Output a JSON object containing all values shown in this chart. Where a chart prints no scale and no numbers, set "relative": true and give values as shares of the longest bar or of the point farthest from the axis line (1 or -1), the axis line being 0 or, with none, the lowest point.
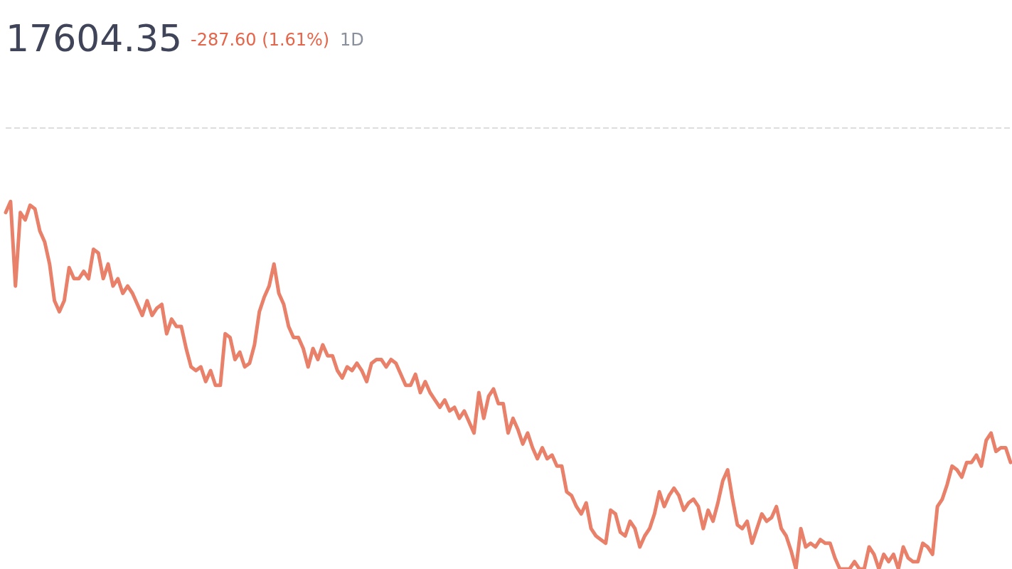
{
  "chart_data": {
    "type": "line",
    "title": "17604.35",
    "subtitle": "-287.60 (1.61%)",
    "annotations": [
      "1D"
    ],
    "relative": true,
    "marker": "none",
    "line_style": "solid",
    "ref_lines": [
      {
        "axis": "y",
        "value": 1.2,
        "color": "#dddddd",
        "line_style": "dashed"
      }
    ],
    "categories": [
      null,
      null,
      null,
      null,
      null,
      null,
      null,
      null,
      null,
      null,
      null,
      null,
      null,
      null,
      null,
      null,
      null,
      null,
      null,
      null,
      null,
      null,
      null,
      null,
      null,
      null,
      null,
      null,
      null,
      null,
      null,
      null,
      null,
      null,
      null,
      null,
      null,
      null,
      null,
      null,
      null,
      null,
      null,
      null,
      null,
      null,
      null,
      null,
      null,
      null,
      null,
      null,
      null,
      null,
      null,
      null,
      null,
      null,
      null,
      null,
      null,
      null,
      null,
      null,
      null,
      null,
      null,
      null,
      null,
      null,
      null,
      null,
      null,
      null,
      null,
      null,
      null,
      null,
      null,
      null,
      null,
      null,
      null,
      null,
      null,
      null,
      null,
      null,
      null,
      null,
      null,
      null,
      null,
      null,
      null,
      null,
      null,
      null,
      null,
      null,
      null,
      null,
      null,
      null,
      null,
      null,
      null,
      null,
      null,
      null,
      null,
      null,
      null,
      null,
      null,
      null,
      null,
      null,
      null,
      null,
      null,
      null,
      null,
      null,
      null,
      null,
      null,
      null,
      null,
      null,
      null,
      null,
      null,
      null,
      null,
      null,
      null,
      null,
      null,
      null,
      null,
      null,
      null,
      null,
      null,
      null,
      null,
      null,
      null,
      null,
      null,
      null,
      null,
      null,
      null,
      null,
      null,
      null,
      null,
      null,
      null,
      null,
      null,
      null,
      null,
      null,
      null,
      null,
      null,
      null,
      null,
      null,
      null,
      null,
      null,
      null,
      null,
      null,
      null,
      null,
      null,
      null,
      null,
      null,
      null,
      null,
      null,
      null,
      null,
      null,
      null,
      null,
      null,
      null,
      null,
      null,
      null,
      null,
      null,
      null,
      null,
      null,
      null,
      null,
      null,
      null,
      null
    ],
    "series": [
      {
        "color": "#e8806a",
        "values": [
          0.97,
          1,
          0.77,
          0.97,
          0.95,
          0.99,
          0.98,
          0.92,
          0.89,
          0.83,
          0.73,
          0.7,
          0.73,
          0.82,
          0.79,
          0.79,
          0.81,
          0.79,
          0.87,
          0.86,
          0.79,
          0.83,
          0.77,
          0.79,
          0.75,
          0.77,
          0.75,
          0.72,
          0.69,
          0.73,
          0.69,
          0.71,
          0.72,
          0.64,
          0.68,
          0.66,
          0.66,
          0.6,
          0.55,
          0.54,
          0.55,
          0.51,
          0.54,
          0.5,
          0.5,
          0.64,
          0.63,
          0.57,
          0.59,
          0.55,
          0.56,
          0.61,
          0.7,
          0.74,
          0.77,
          0.83,
          0.75,
          0.72,
          0.66,
          0.63,
          0.63,
          0.6,
          0.55,
          0.6,
          0.57,
          0.61,
          0.58,
          0.58,
          0.54,
          0.52,
          0.55,
          0.54,
          0.56,
          0.54,
          0.51,
          0.56,
          0.57,
          0.57,
          0.55,
          0.57,
          0.56,
          0.53,
          0.5,
          0.5,
          0.53,
          0.48,
          0.51,
          0.48,
          0.46,
          0.44,
          0.46,
          0.43,
          0.44,
          0.41,
          0.43,
          0.4,
          0.37,
          0.48,
          0.41,
          0.47,
          0.49,
          0.45,
          0.45,
          0.37,
          0.41,
          0.38,
          0.34,
          0.37,
          0.33,
          0.3,
          0.33,
          0.3,
          0.31,
          0.28,
          0.28,
          0.21,
          0.2,
          0.17,
          0.15,
          0.18,
          0.11,
          0.09,
          0.08,
          0.07,
          0.16,
          0.15,
          0.1,
          0.09,
          0.13,
          0.11,
          0.06,
          0.09,
          0.11,
          0.15,
          0.21,
          0.17,
          0.2,
          0.22,
          0.2,
          0.16,
          0.18,
          0.19,
          0.17,
          0.11,
          0.16,
          0.13,
          0.18,
          0.24,
          0.27,
          0.19,
          0.12,
          0.11,
          0.13,
          0.07,
          0.11,
          0.15,
          0.13,
          0.14,
          0.17,
          0.11,
          0.09,
          0.05,
          0,
          0.11,
          0.06,
          0.07,
          0.06,
          0.08,
          0.07,
          0.07,
          0.03,
          0,
          0,
          0,
          0.02,
          0,
          0,
          0.06,
          0.04,
          0,
          0.04,
          0.02,
          0.04,
          0,
          0.06,
          0.03,
          0.02,
          0.02,
          0.07,
          0.06,
          0.04,
          0.17,
          0.19,
          0.23,
          0.28,
          0.27,
          0.25,
          0.29,
          0.29,
          0.31,
          0.28,
          0.35,
          0.37,
          0.32,
          0.33,
          0.33,
          0.29
        ]
      }
    ]
  }
}
